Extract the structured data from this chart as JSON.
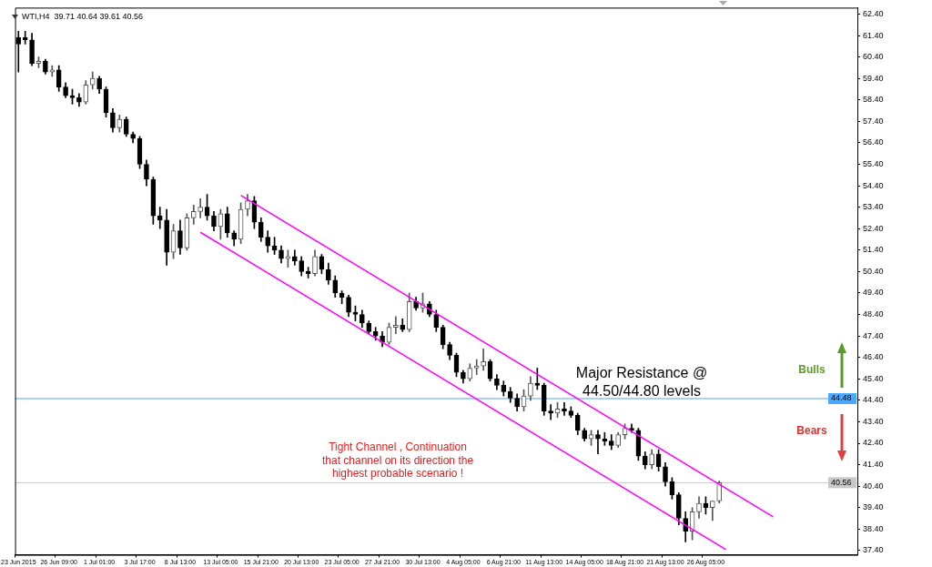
{
  "chart_data": {
    "type": "candlestick",
    "categories": [
      "23 Jun 2015",
      null,
      null,
      null,
      null,
      null,
      "26 Jun 09:00",
      null,
      null,
      null,
      null,
      null,
      "1 Jul 01:00",
      null,
      null,
      null,
      null,
      null,
      "3 Jul 17:00",
      null,
      null,
      null,
      null,
      null,
      "8 Jul 13:00",
      null,
      null,
      null,
      null,
      null,
      "13 Jul 05:00",
      null,
      null,
      null,
      null,
      null,
      "15 Jul 21:00",
      null,
      null,
      null,
      null,
      null,
      "20 Jul 13:00",
      null,
      null,
      null,
      null,
      null,
      "23 Jul 05:00",
      null,
      null,
      null,
      null,
      null,
      "27 Jul 21:00",
      null,
      null,
      null,
      null,
      null,
      "30 Jul 13:00",
      null,
      null,
      null,
      null,
      null,
      "4 Aug 05:00",
      null,
      null,
      null,
      null,
      null,
      "6 Aug 21:00",
      null,
      null,
      null,
      null,
      null,
      "11 Aug 13:00",
      null,
      null,
      null,
      null,
      null,
      "14 Aug 05:00",
      null,
      null,
      null,
      null,
      null,
      "18 Aug 21:00",
      null,
      null,
      null,
      null,
      null,
      "21 Aug 13:00",
      null,
      null,
      null,
      null,
      null,
      "26 Aug 05:00",
      null,
      null,
      null,
      null,
      null,
      null,
      null,
      null,
      null,
      null,
      null,
      null,
      null,
      null,
      null,
      null,
      null,
      null,
      null,
      null,
      null,
      null
    ],
    "ohlc": [
      [
        61.3,
        61.6,
        59.7,
        61.0
      ],
      [
        61.3,
        61.6,
        61.0,
        61.2
      ],
      [
        61.2,
        61.5,
        60.0,
        60.1
      ],
      [
        60.1,
        60.4,
        59.9,
        60.2
      ],
      [
        60.2,
        60.3,
        59.6,
        59.7
      ],
      [
        59.7,
        60.0,
        59.5,
        59.8
      ],
      [
        59.8,
        60.0,
        58.8,
        59.0
      ],
      [
        59.0,
        59.2,
        58.5,
        58.6
      ],
      [
        58.6,
        58.9,
        58.2,
        58.5
      ],
      [
        58.5,
        58.7,
        58.1,
        58.3
      ],
      [
        58.3,
        59.3,
        58.2,
        59.1
      ],
      [
        59.1,
        59.7,
        58.9,
        59.4
      ],
      [
        59.4,
        59.5,
        58.7,
        58.9
      ],
      [
        58.9,
        59.0,
        57.6,
        57.8
      ],
      [
        57.8,
        58.0,
        56.9,
        57.1
      ],
      [
        57.1,
        57.7,
        56.9,
        57.5
      ],
      [
        57.5,
        57.6,
        56.7,
        56.8
      ],
      [
        56.8,
        56.9,
        56.4,
        56.6
      ],
      [
        56.6,
        56.7,
        55.2,
        55.4
      ],
      [
        55.4,
        55.6,
        54.4,
        54.7
      ],
      [
        54.7,
        54.8,
        52.6,
        53.0
      ],
      [
        53.0,
        53.4,
        52.4,
        52.8
      ],
      [
        52.8,
        53.3,
        50.7,
        51.3
      ],
      [
        51.3,
        52.6,
        51.0,
        52.3
      ],
      [
        52.3,
        52.8,
        51.2,
        51.5
      ],
      [
        51.5,
        53.1,
        51.4,
        52.9
      ],
      [
        52.9,
        53.5,
        52.6,
        53.2
      ],
      [
        53.2,
        53.8,
        52.9,
        53.4
      ],
      [
        53.4,
        54.0,
        52.8,
        53.0
      ],
      [
        53.0,
        53.2,
        52.3,
        52.5
      ],
      [
        52.5,
        53.3,
        51.9,
        53.1
      ],
      [
        53.1,
        53.4,
        52.0,
        52.2
      ],
      [
        52.2,
        52.3,
        51.6,
        51.9
      ],
      [
        51.9,
        53.6,
        51.7,
        53.3
      ],
      [
        53.3,
        54.0,
        53.0,
        53.7
      ],
      [
        53.7,
        53.9,
        52.4,
        52.7
      ],
      [
        52.7,
        52.9,
        51.8,
        52.0
      ],
      [
        52.0,
        52.3,
        51.3,
        51.6
      ],
      [
        51.6,
        52.0,
        51.2,
        51.4
      ],
      [
        51.4,
        51.6,
        50.8,
        51.0
      ],
      [
        51.0,
        51.4,
        50.6,
        51.1
      ],
      [
        51.1,
        51.4,
        50.7,
        50.9
      ],
      [
        50.9,
        51.1,
        50.2,
        50.4
      ],
      [
        50.4,
        50.6,
        50.1,
        50.3
      ],
      [
        50.3,
        51.4,
        50.2,
        51.1
      ],
      [
        51.1,
        51.2,
        50.3,
        50.5
      ],
      [
        50.5,
        50.8,
        49.8,
        50.0
      ],
      [
        50.0,
        50.2,
        49.2,
        49.4
      ],
      [
        49.4,
        49.5,
        48.9,
        49.2
      ],
      [
        49.2,
        49.3,
        48.3,
        48.5
      ],
      [
        48.5,
        48.8,
        48.1,
        48.4
      ],
      [
        48.4,
        48.6,
        47.8,
        48.0
      ],
      [
        48.0,
        48.1,
        47.5,
        47.6
      ],
      [
        47.6,
        47.8,
        47.2,
        47.4
      ],
      [
        47.4,
        47.6,
        46.9,
        47.1
      ],
      [
        47.1,
        48.0,
        47.0,
        47.8
      ],
      [
        47.8,
        48.3,
        47.5,
        47.9
      ],
      [
        47.9,
        48.2,
        47.6,
        47.7
      ],
      [
        47.7,
        49.4,
        47.6,
        49.0
      ],
      [
        49.0,
        49.2,
        48.6,
        48.7
      ],
      [
        48.7,
        49.4,
        48.5,
        48.9
      ],
      [
        48.9,
        49.0,
        48.3,
        48.4
      ],
      [
        48.4,
        48.6,
        47.6,
        47.8
      ],
      [
        47.8,
        47.9,
        46.8,
        47.0
      ],
      [
        47.0,
        47.1,
        46.3,
        46.5
      ],
      [
        46.5,
        46.6,
        45.5,
        45.7
      ],
      [
        45.7,
        45.8,
        45.2,
        45.4
      ],
      [
        45.4,
        46.1,
        45.3,
        45.9
      ],
      [
        45.9,
        46.3,
        45.6,
        46.0
      ],
      [
        46.0,
        46.8,
        45.8,
        46.2
      ],
      [
        46.2,
        46.3,
        45.3,
        45.4
      ],
      [
        45.4,
        45.6,
        44.9,
        45.1
      ],
      [
        45.1,
        45.3,
        44.6,
        44.8
      ],
      [
        44.8,
        45.0,
        44.3,
        44.5
      ],
      [
        44.5,
        44.7,
        43.9,
        44.1
      ],
      [
        44.1,
        44.9,
        43.9,
        44.6
      ],
      [
        44.6,
        45.5,
        44.4,
        45.2
      ],
      [
        45.2,
        45.9,
        44.9,
        45.1
      ],
      [
        45.1,
        45.2,
        43.7,
        43.9
      ],
      [
        43.9,
        44.2,
        43.5,
        43.8
      ],
      [
        43.8,
        44.3,
        43.6,
        44.0
      ],
      [
        44.0,
        44.3,
        43.7,
        43.9
      ],
      [
        43.9,
        44.1,
        43.6,
        43.7
      ],
      [
        43.7,
        43.8,
        42.8,
        43.0
      ],
      [
        43.0,
        43.1,
        42.5,
        42.6
      ],
      [
        42.6,
        43.0,
        42.3,
        42.8
      ],
      [
        42.8,
        43.0,
        41.9,
        42.6
      ],
      [
        42.6,
        42.9,
        42.3,
        42.5
      ],
      [
        42.5,
        42.8,
        42.1,
        42.3
      ],
      [
        42.3,
        42.9,
        42.2,
        42.8
      ],
      [
        42.8,
        43.3,
        42.6,
        43.1
      ],
      [
        43.1,
        43.3,
        42.9,
        43.0
      ],
      [
        43.0,
        43.1,
        41.6,
        41.8
      ],
      [
        41.8,
        42.0,
        41.2,
        41.4
      ],
      [
        41.4,
        42.1,
        41.2,
        41.9
      ],
      [
        41.9,
        42.1,
        41.1,
        41.3
      ],
      [
        41.3,
        41.5,
        40.4,
        40.6
      ],
      [
        40.6,
        40.8,
        39.8,
        40.0
      ],
      [
        40.0,
        40.1,
        38.6,
        38.9
      ],
      [
        38.9,
        39.2,
        37.8,
        38.3
      ],
      [
        38.3,
        39.4,
        37.9,
        39.2
      ],
      [
        39.2,
        39.9,
        38.9,
        39.6
      ],
      [
        39.6,
        39.9,
        39.1,
        39.4
      ],
      [
        39.4,
        39.7,
        38.8,
        39.7
      ],
      [
        39.71,
        40.64,
        39.61,
        40.56
      ],
      null,
      null,
      null,
      null,
      null,
      null,
      null,
      null,
      null,
      null,
      null,
      null,
      null,
      null,
      null,
      null,
      null,
      null,
      null,
      null
    ],
    "series": [
      {
        "type": "line",
        "color": "#ff00ff",
        "values": [
          null,
          null,
          null,
          null,
          null,
          null,
          null,
          null,
          null,
          null,
          null,
          null,
          null,
          null,
          null,
          null,
          null,
          null,
          null,
          null,
          null,
          null,
          null,
          null,
          null,
          null,
          null,
          null,
          null,
          null,
          null,
          null,
          null,
          53.95,
          null,
          null,
          null,
          null,
          null,
          null,
          null,
          null,
          null,
          null,
          null,
          null,
          null,
          null,
          null,
          null,
          null,
          null,
          null,
          null,
          null,
          null,
          null,
          null,
          null,
          null,
          null,
          null,
          null,
          null,
          null,
          null,
          null,
          null,
          null,
          null,
          null,
          null,
          null,
          null,
          null,
          null,
          null,
          null,
          null,
          null,
          null,
          null,
          null,
          null,
          null,
          null,
          null,
          null,
          null,
          null,
          null,
          null,
          null,
          null,
          null,
          null,
          null,
          null,
          null,
          null,
          null,
          null,
          null,
          null,
          null,
          null,
          null,
          null,
          null,
          null,
          null,
          null,
          38.97,
          null,
          null,
          null,
          null,
          null,
          null,
          null,
          null,
          null,
          null,
          null,
          null
        ]
      },
      {
        "type": "line",
        "color": "#ff00ff",
        "values": [
          null,
          null,
          null,
          null,
          null,
          null,
          null,
          null,
          null,
          null,
          null,
          null,
          null,
          null,
          null,
          null,
          null,
          null,
          null,
          null,
          null,
          null,
          null,
          null,
          null,
          null,
          null,
          52.23,
          null,
          null,
          null,
          null,
          null,
          null,
          null,
          null,
          null,
          null,
          null,
          null,
          null,
          null,
          null,
          null,
          null,
          null,
          null,
          null,
          null,
          null,
          null,
          null,
          null,
          null,
          null,
          null,
          null,
          null,
          null,
          null,
          null,
          null,
          null,
          null,
          null,
          null,
          null,
          null,
          null,
          null,
          null,
          null,
          null,
          null,
          null,
          null,
          null,
          null,
          null,
          null,
          null,
          null,
          null,
          null,
          null,
          null,
          null,
          null,
          null,
          null,
          null,
          null,
          null,
          null,
          null,
          null,
          null,
          null,
          null,
          null,
          null,
          null,
          null,
          null,
          null,
          37.44,
          null,
          null,
          null,
          null,
          null,
          null,
          null,
          null,
          null,
          null,
          null,
          null,
          null,
          null,
          null,
          null,
          null,
          null,
          null
        ]
      }
    ],
    "ylim": [
      37.2,
      62.7
    ],
    "yticks": [
      {
        "value": 37.4,
        "label": "37.40"
      },
      {
        "value": 38.4,
        "label": "38.40"
      },
      {
        "value": 39.4,
        "label": "39.40"
      },
      {
        "value": 40.4,
        "label": "40.40"
      },
      {
        "value": 41.4,
        "label": "41.40"
      },
      {
        "value": 42.4,
        "label": "42.40"
      },
      {
        "value": 43.4,
        "label": "43.40"
      },
      {
        "value": 44.4,
        "label": "44.40"
      },
      {
        "value": 45.4,
        "label": "45.40"
      },
      {
        "value": 46.4,
        "label": "46.40"
      },
      {
        "value": 47.4,
        "label": "47.40"
      },
      {
        "value": 48.4,
        "label": "48.40"
      },
      {
        "value": 49.4,
        "label": "49.40"
      },
      {
        "value": 50.4,
        "label": "50.40"
      },
      {
        "value": 51.4,
        "label": "51.40"
      },
      {
        "value": 52.4,
        "label": "52.40"
      },
      {
        "value": 53.4,
        "label": "53.40"
      },
      {
        "value": 54.4,
        "label": "54.40"
      },
      {
        "value": 55.4,
        "label": "55.40"
      },
      {
        "value": 56.4,
        "label": "56.40"
      },
      {
        "value": 57.4,
        "label": "57.40"
      },
      {
        "value": 58.4,
        "label": "58.40"
      },
      {
        "value": 59.4,
        "label": "59.40"
      },
      {
        "value": 60.4,
        "label": "60.40"
      },
      {
        "value": 61.4,
        "label": "61.40"
      },
      {
        "value": 62.4,
        "label": "62.40"
      }
    ],
    "ref_lines": [
      {
        "axis": "y",
        "value": 44.48,
        "label": "44.48",
        "color": "#4aa8ff"
      },
      {
        "axis": "y",
        "value": 40.56,
        "label": "40.56",
        "color": "#c8c8c8"
      }
    ],
    "annotations": [
      "WTI,H4  39.71 40.64 39.61 40.56",
      "Major Resistance @\n44.50/44.80 levels",
      "Bulls",
      "Bears",
      "Tight Channel , Continuation\nthat channel on its direction the\nhighest probable scenario !"
    ]
  }
}
